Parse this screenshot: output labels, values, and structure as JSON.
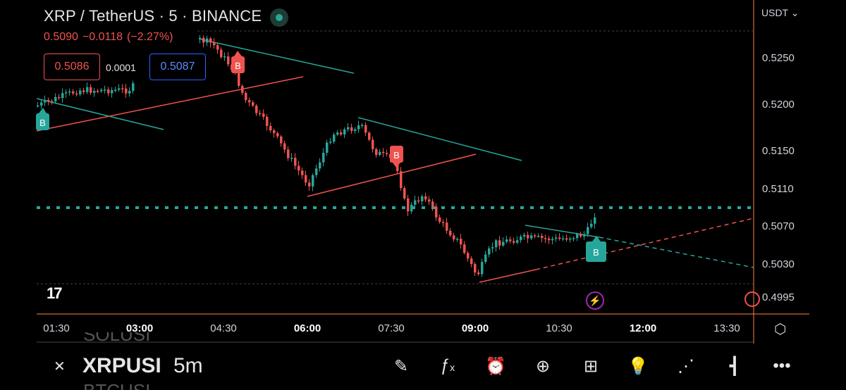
{
  "header": {
    "title": "XRP / TetherUS · 5 · BINANCE",
    "currency": "USDT ⌄",
    "ohlc": {
      "last": "0.5090",
      "change": "−0.0118",
      "change_pct": "(−2.27%)"
    },
    "bid": "0.5086",
    "spread": "0.0001",
    "ask": "0.5087"
  },
  "price_axis": [
    "0.5250",
    "0.5200",
    "0.5150",
    "0.5110",
    "0.5070",
    "0.5030",
    "0.4995"
  ],
  "time_axis": [
    {
      "label": "01:30",
      "bold": false
    },
    {
      "label": "03:00",
      "bold": true
    },
    {
      "label": "04:30",
      "bold": false
    },
    {
      "label": "06:00",
      "bold": true
    },
    {
      "label": "07:30",
      "bold": false
    },
    {
      "label": "09:00",
      "bold": true
    },
    {
      "label": "10:30",
      "bold": false
    },
    {
      "label": "12:00",
      "bold": true
    },
    {
      "label": "13:30",
      "bold": false
    }
  ],
  "markers": {
    "buy": "B",
    "sell": "B"
  },
  "colors": {
    "up": "#26a69a",
    "down": "#ef5350",
    "accent": "#ff7f3f"
  },
  "bottom_bar": {
    "symbol": "XRPUSI",
    "timeframe": "5m",
    "ghost_above": "SOLUSI",
    "ghost_below": "BTCUSI"
  },
  "icons": [
    "close-icon",
    "draw-icon",
    "fx-icon",
    "alarm-icon",
    "add-icon",
    "layout-icon",
    "idea-icon",
    "share-icon",
    "candles-icon",
    "more-icon",
    "settings-icon",
    "bolt-icon"
  ]
}
